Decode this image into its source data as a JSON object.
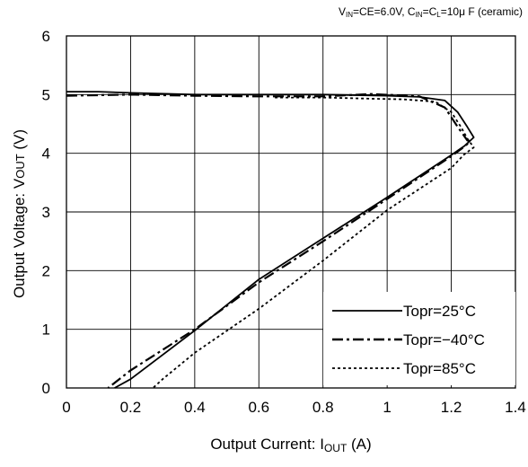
{
  "chart_data": {
    "type": "line",
    "conditions": {
      "vin_sub": "IN",
      "part1": "=CE=6.0V, C",
      "cin_sub": "IN",
      "part2": "=C",
      "cl_sub": "L",
      "part3": "=10",
      "mu": "μ",
      "part4": " F (ceramic)"
    },
    "xlabel": {
      "main": "Output Current: I",
      "sub": "OUT",
      "unit": " (A)"
    },
    "ylabel": {
      "main": "Output Voltage: V",
      "sub": "OUT",
      "unit": " (V)"
    },
    "xlim": [
      0,
      1.4
    ],
    "ylim": [
      0,
      6
    ],
    "xticks": [
      0,
      0.2,
      0.4,
      0.6,
      0.8,
      1,
      1.2,
      1.4
    ],
    "yticks": [
      0,
      1,
      2,
      3,
      4,
      5,
      6
    ],
    "xtick_labels": [
      "0",
      "0.2",
      "0.4",
      "0.6",
      "0.8",
      "1",
      "1.2",
      "1.4"
    ],
    "ytick_labels": [
      "0",
      "1",
      "2",
      "3",
      "4",
      "5",
      "6"
    ],
    "grid": true,
    "legend_position": "bottom-right",
    "series": [
      {
        "name": "Topr=25°C",
        "style": "solid",
        "color": "#000000",
        "points": [
          [
            0,
            5.05
          ],
          [
            0.1,
            5.05
          ],
          [
            0.2,
            5.03
          ],
          [
            0.4,
            5.0
          ],
          [
            0.6,
            5.0
          ],
          [
            0.8,
            5.0
          ],
          [
            1.0,
            4.98
          ],
          [
            1.1,
            4.96
          ],
          [
            1.18,
            4.9
          ],
          [
            1.22,
            4.7
          ],
          [
            1.25,
            4.45
          ],
          [
            1.27,
            4.27
          ],
          [
            1.24,
            4.12
          ],
          [
            1.2,
            3.97
          ],
          [
            1.0,
            3.25
          ],
          [
            0.8,
            2.55
          ],
          [
            0.6,
            1.85
          ],
          [
            0.4,
            0.98
          ],
          [
            0.2,
            0.15
          ],
          [
            0.15,
            0
          ]
        ]
      },
      {
        "name": "Topr=−40°C",
        "style": "dashdot",
        "color": "#000000",
        "points": [
          [
            0,
            4.98
          ],
          [
            0.2,
            5.0
          ],
          [
            0.4,
            4.98
          ],
          [
            0.6,
            4.97
          ],
          [
            0.8,
            4.97
          ],
          [
            0.95,
            5.01
          ],
          [
            1.1,
            4.97
          ],
          [
            1.18,
            4.78
          ],
          [
            1.22,
            4.45
          ],
          [
            1.25,
            4.22
          ],
          [
            1.26,
            4.2
          ],
          [
            1.23,
            4.07
          ],
          [
            1.2,
            3.95
          ],
          [
            1.0,
            3.22
          ],
          [
            0.8,
            2.5
          ],
          [
            0.6,
            1.8
          ],
          [
            0.4,
            1.0
          ],
          [
            0.2,
            0.3
          ],
          [
            0.13,
            0
          ]
        ]
      },
      {
        "name": "Topr=85°C",
        "style": "dotted",
        "color": "#000000",
        "points": [
          [
            0.65,
            4.95
          ],
          [
            0.8,
            4.95
          ],
          [
            0.95,
            4.93
          ],
          [
            1.05,
            4.92
          ],
          [
            1.15,
            4.88
          ],
          [
            1.2,
            4.7
          ],
          [
            1.23,
            4.45
          ],
          [
            1.25,
            4.25
          ],
          [
            1.27,
            4.1
          ],
          [
            1.24,
            3.98
          ],
          [
            1.2,
            3.75
          ],
          [
            1.0,
            3.03
          ],
          [
            0.8,
            2.17
          ],
          [
            0.6,
            1.35
          ],
          [
            0.4,
            0.6
          ],
          [
            0.3,
            0.15
          ],
          [
            0.27,
            0
          ]
        ]
      }
    ]
  }
}
